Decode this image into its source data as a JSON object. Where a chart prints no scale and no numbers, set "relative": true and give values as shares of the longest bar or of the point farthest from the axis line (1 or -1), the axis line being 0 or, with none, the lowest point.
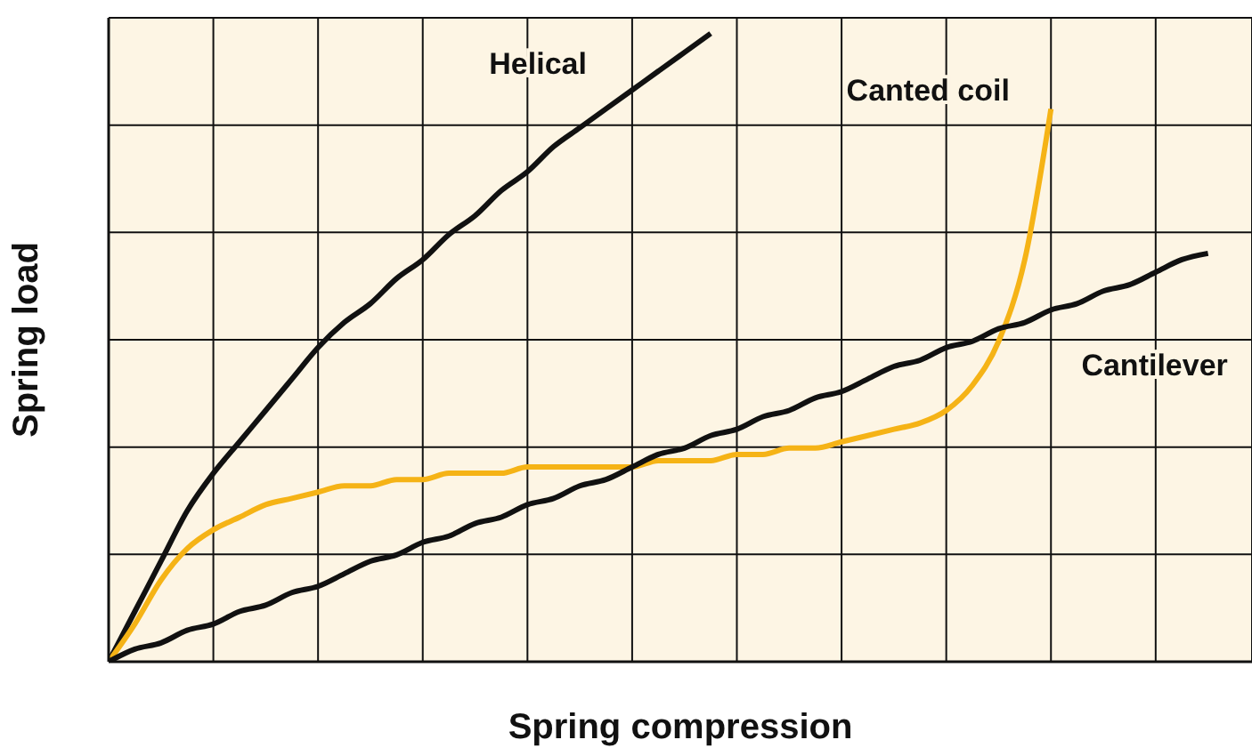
{
  "chart_data": {
    "type": "line",
    "relative": true,
    "xlabel": "Spring compression",
    "ylabel": "Spring load",
    "grid": true,
    "marker": "none",
    "line_style": "solid",
    "categories": [
      null,
      null,
      null,
      null,
      null,
      null,
      null,
      null,
      null,
      null,
      null,
      null,
      null,
      null,
      null,
      null,
      null,
      null,
      null,
      null,
      null,
      null,
      null,
      null,
      null,
      null,
      null,
      null,
      null,
      null,
      null,
      null,
      null,
      null,
      null,
      null,
      null,
      null,
      null,
      null,
      null,
      null,
      null
    ],
    "series": [
      {
        "name": "Helical",
        "color": "#111111",
        "values": [
          0,
          0.08,
          0.16,
          0.24,
          0.3,
          0.35,
          0.4,
          0.45,
          0.5,
          0.54,
          0.57,
          0.61,
          0.64,
          0.68,
          0.71,
          0.75,
          0.78,
          0.82,
          0.85,
          0.88,
          0.91,
          0.94,
          0.97,
          1,
          null,
          null,
          null,
          null,
          null,
          null,
          null,
          null,
          null,
          null,
          null,
          null,
          null,
          null,
          null,
          null,
          null,
          null,
          null
        ]
      },
      {
        "name": "Canted coil",
        "color": "#f5b316",
        "values": [
          0,
          0.06,
          0.13,
          0.18,
          0.21,
          0.23,
          0.25,
          0.26,
          0.27,
          0.28,
          0.28,
          0.29,
          0.29,
          0.3,
          0.3,
          0.3,
          0.31,
          0.31,
          0.31,
          0.31,
          0.31,
          0.32,
          0.32,
          0.32,
          0.33,
          0.33,
          0.34,
          0.34,
          0.35,
          0.36,
          0.37,
          0.38,
          0.4,
          0.44,
          0.51,
          0.64,
          0.88,
          null,
          null,
          null,
          null,
          null,
          null
        ]
      },
      {
        "name": "Cantilever",
        "color": "#111111",
        "values": [
          0,
          0.02,
          0.03,
          0.05,
          0.06,
          0.08,
          0.09,
          0.11,
          0.12,
          0.14,
          0.16,
          0.17,
          0.19,
          0.2,
          0.22,
          0.23,
          0.25,
          0.26,
          0.28,
          0.29,
          0.31,
          0.33,
          0.34,
          0.36,
          0.37,
          0.39,
          0.4,
          0.42,
          0.43,
          0.45,
          0.47,
          0.48,
          0.5,
          0.51,
          0.53,
          0.54,
          0.56,
          0.57,
          0.59,
          0.6,
          0.62,
          0.64,
          0.65
        ]
      }
    ]
  }
}
